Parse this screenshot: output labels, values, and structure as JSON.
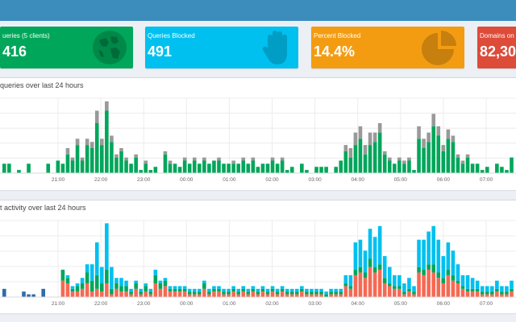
{
  "stat_boxes": [
    {
      "label": "ueries (5 clients)",
      "value": "416",
      "color": "#00a65a",
      "icon": "globe-icon"
    },
    {
      "label": "Queries Blocked",
      "value": "491",
      "color": "#00c0ef",
      "icon": "hand-icon"
    },
    {
      "label": "Percent Blocked",
      "value": "14.4%",
      "color": "#f39c12",
      "icon": "pie-chart-icon"
    },
    {
      "label": "Domains on B",
      "value": "82,30",
      "color": "#dd4b39",
      "icon": ""
    }
  ],
  "panels": {
    "queries_title": "queries over last 24 hours",
    "clients_title": "t activity over last 24 hours"
  },
  "chart_data": [
    {
      "type": "bar",
      "title": "queries over last 24 hours",
      "x_tick_labels": [
        "21:00",
        "22:00",
        "23:00",
        "00:00",
        "01:00",
        "02:00",
        "03:00",
        "04:00",
        "05:00",
        "06:00",
        "07:00"
      ],
      "grid": true,
      "series": [
        {
          "color": "#00a65a",
          "values": [
            3,
            3,
            0,
            1,
            0,
            3,
            0,
            0,
            0,
            3,
            0,
            4,
            3,
            6,
            4,
            9,
            4,
            9,
            8,
            16,
            9,
            20,
            10,
            5,
            7,
            4,
            3,
            5,
            1,
            3,
            1,
            2,
            0,
            6,
            3,
            3,
            2,
            4,
            3,
            4,
            3,
            4,
            3,
            4,
            4,
            3,
            3,
            3,
            3,
            4,
            3,
            4,
            2,
            3,
            3,
            4,
            3,
            4,
            1,
            2,
            0,
            3,
            1,
            0,
            2,
            2,
            2,
            0,
            2,
            4,
            7,
            5,
            9,
            11,
            6,
            9,
            10,
            13,
            6,
            4,
            3,
            4,
            3,
            4,
            1,
            11,
            8,
            10,
            15,
            12,
            7,
            11,
            10,
            5,
            3,
            5,
            3,
            3,
            1,
            2,
            0,
            3,
            2,
            1,
            5
          ]
        },
        {
          "color": "#999999",
          "values": [
            0,
            0,
            0,
            0,
            0,
            0,
            0,
            0,
            0,
            0,
            0,
            0,
            0,
            2,
            1,
            2,
            1,
            2,
            2,
            4,
            2,
            3,
            2,
            1,
            1,
            1,
            0,
            1,
            0,
            1,
            0,
            0,
            0,
            1,
            1,
            0,
            0,
            1,
            0,
            1,
            0,
            1,
            0,
            0,
            1,
            0,
            0,
            1,
            0,
            1,
            0,
            1,
            0,
            0,
            0,
            1,
            0,
            1,
            0,
            0,
            0,
            0,
            0,
            0,
            0,
            0,
            0,
            0,
            0,
            0,
            2,
            3,
            4,
            4,
            3,
            4,
            3,
            3,
            1,
            1,
            0,
            1,
            1,
            1,
            0,
            4,
            3,
            3,
            4,
            3,
            2,
            3,
            2,
            1,
            1,
            1,
            0,
            0,
            0,
            0,
            0,
            0,
            0,
            0,
            0
          ]
        }
      ]
    },
    {
      "type": "bar",
      "title": "t activity over last 24 hours",
      "x_tick_labels": [
        "21:00",
        "22:00",
        "23:00",
        "00:00",
        "01:00",
        "02:00",
        "03:00",
        "04:00",
        "05:00",
        "06:00",
        "07:00"
      ],
      "grid": true,
      "series": [
        {
          "color": "#2f6ca8",
          "values": [
            3,
            0,
            0,
            0,
            2,
            1,
            1,
            0,
            3,
            0,
            0,
            0,
            0,
            0,
            0,
            0,
            0,
            0,
            0,
            0,
            0,
            0,
            0,
            0,
            0,
            0,
            0,
            0,
            0,
            0,
            0,
            0,
            0,
            0,
            0,
            0,
            0,
            0,
            0,
            0,
            0,
            0,
            0,
            0,
            0,
            0,
            0,
            0,
            0,
            0,
            0,
            0,
            0,
            0,
            0,
            0,
            0,
            0,
            0,
            0,
            0,
            0,
            0,
            0,
            0,
            0,
            0,
            0,
            0,
            0,
            0,
            0,
            0,
            0,
            0,
            0,
            0,
            0,
            0,
            0,
            0,
            0,
            0,
            0,
            0,
            0,
            0,
            0,
            0,
            0,
            0,
            0,
            0,
            0,
            0,
            0,
            0,
            0,
            0,
            0,
            0,
            0,
            0,
            0,
            0
          ]
        },
        {
          "color": "#f56954",
          "values": [
            0,
            0,
            0,
            0,
            0,
            0,
            0,
            0,
            0,
            0,
            0,
            0,
            6,
            5,
            2,
            2,
            3,
            5,
            2,
            3,
            2,
            5,
            1,
            3,
            2,
            2,
            1,
            3,
            1,
            2,
            1,
            5,
            3,
            4,
            2,
            2,
            2,
            2,
            1,
            1,
            1,
            3,
            1,
            2,
            2,
            1,
            1,
            2,
            1,
            2,
            1,
            2,
            1,
            2,
            1,
            2,
            1,
            2,
            1,
            1,
            1,
            2,
            1,
            1,
            1,
            1,
            0,
            1,
            1,
            1,
            4,
            3,
            8,
            9,
            7,
            11,
            9,
            10,
            5,
            4,
            3,
            3,
            1,
            2,
            1,
            9,
            8,
            10,
            9,
            7,
            5,
            8,
            6,
            5,
            3,
            2,
            2,
            2,
            1,
            1,
            1,
            2,
            1,
            1,
            2
          ]
        },
        {
          "color": "#00a65a",
          "values": [
            0,
            0,
            0,
            0,
            0,
            0,
            0,
            0,
            0,
            0,
            0,
            0,
            4,
            2,
            1,
            2,
            2,
            4,
            4,
            5,
            3,
            5,
            2,
            2,
            2,
            2,
            1,
            2,
            1,
            2,
            1,
            3,
            2,
            2,
            1,
            1,
            1,
            1,
            1,
            1,
            1,
            2,
            1,
            1,
            1,
            1,
            1,
            1,
            1,
            1,
            1,
            1,
            1,
            1,
            1,
            1,
            1,
            1,
            1,
            1,
            1,
            1,
            1,
            1,
            1,
            1,
            1,
            1,
            1,
            1,
            1,
            1,
            2,
            2,
            2,
            3,
            2,
            2,
            2,
            1,
            1,
            1,
            1,
            1,
            1,
            2,
            2,
            2,
            3,
            2,
            2,
            2,
            2,
            1,
            1,
            1,
            1,
            1,
            1,
            1,
            1,
            1,
            1,
            1,
            1
          ]
        },
        {
          "color": "#00c0ef",
          "values": [
            0,
            0,
            0,
            0,
            0,
            0,
            0,
            0,
            0,
            0,
            0,
            0,
            0,
            1,
            1,
            1,
            2,
            3,
            6,
            12,
            6,
            17,
            8,
            2,
            3,
            2,
            1,
            1,
            1,
            1,
            1,
            2,
            1,
            1,
            1,
            1,
            1,
            1,
            1,
            1,
            1,
            1,
            1,
            1,
            1,
            1,
            1,
            1,
            1,
            1,
            1,
            1,
            1,
            1,
            1,
            1,
            1,
            1,
            1,
            1,
            1,
            1,
            1,
            1,
            1,
            1,
            1,
            1,
            1,
            1,
            3,
            4,
            10,
            10,
            8,
            11,
            11,
            14,
            8,
            6,
            4,
            4,
            3,
            4,
            2,
            10,
            11,
            12,
            14,
            12,
            8,
            10,
            9,
            6,
            4,
            5,
            4,
            3,
            2,
            2,
            2,
            3,
            2,
            2,
            3
          ]
        }
      ]
    }
  ]
}
